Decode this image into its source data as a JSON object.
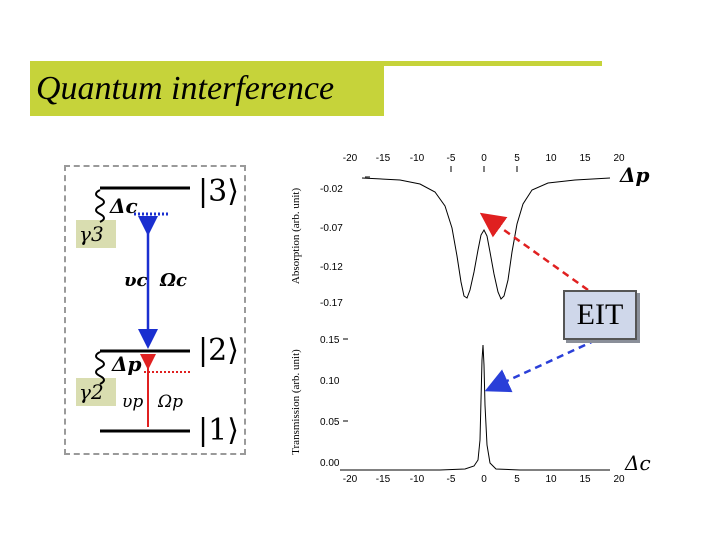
{
  "slide": {
    "title": "Quantum interference"
  },
  "level_diagram": {
    "level3": "|3⟩",
    "level2": "|2⟩",
    "level1": "|1⟩",
    "delta_c": "Δc",
    "delta_p": "Δp",
    "gamma3": "γ3",
    "gamma2": "γ2",
    "nu_c": "υc",
    "omega_c": "Ωc",
    "nu_p": "υp",
    "omega_p": "Ωp"
  },
  "plots": {
    "absorption": {
      "ylabel": "Absorption (arb. unit)",
      "x_ticks": [
        "-20",
        "-15",
        "-10",
        "-5",
        "0",
        "5",
        "10",
        "15",
        "20"
      ],
      "y_ticks": [
        "-0.02",
        "-0.07",
        "-0.12",
        "-0.17"
      ],
      "x_axis_symbol": "Δp"
    },
    "transmission": {
      "ylabel": "Transmission (arb. unit)",
      "x_ticks": [
        "-20",
        "-15",
        "-10",
        "-5",
        "0",
        "5",
        "10",
        "15",
        "20"
      ],
      "y_ticks": [
        "0.15",
        "0.10",
        "0.05",
        "0.00"
      ],
      "x_axis_symbol": "Δc"
    }
  },
  "callout": {
    "label": "EIT"
  },
  "colors": {
    "title_bar": "#c6d33a",
    "coupling": "#1a2fd0",
    "probe": "#e02020",
    "arrow_red": "#e02020",
    "arrow_blue": "#2a3fd8"
  }
}
